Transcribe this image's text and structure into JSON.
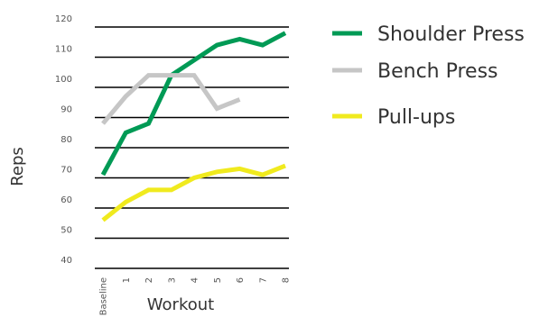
{
  "chart_data": {
    "type": "line",
    "title": "",
    "xlabel": "Workout",
    "ylabel": "Reps",
    "categories": [
      "Baseline",
      "1",
      "2",
      "3",
      "4",
      "5",
      "6",
      "7",
      "8"
    ],
    "y_ticks": [
      40,
      50,
      60,
      70,
      80,
      90,
      100,
      110,
      120
    ],
    "ylim": [
      40,
      120
    ],
    "grid": true,
    "legend_position": "top-right",
    "series": [
      {
        "name": "Shoulder Press",
        "color": "#009a55",
        "values": [
          71,
          85,
          88,
          104,
          109,
          114,
          116,
          114,
          118
        ]
      },
      {
        "name": "Bench Press",
        "color": "#c6c6c6",
        "values": [
          88,
          97,
          104,
          104,
          104,
          93,
          96,
          null,
          null
        ]
      },
      {
        "name": "Pull-ups",
        "color": "#f0ea1e",
        "values": [
          56,
          62,
          66,
          66,
          70,
          72,
          73,
          71,
          74
        ]
      }
    ]
  }
}
